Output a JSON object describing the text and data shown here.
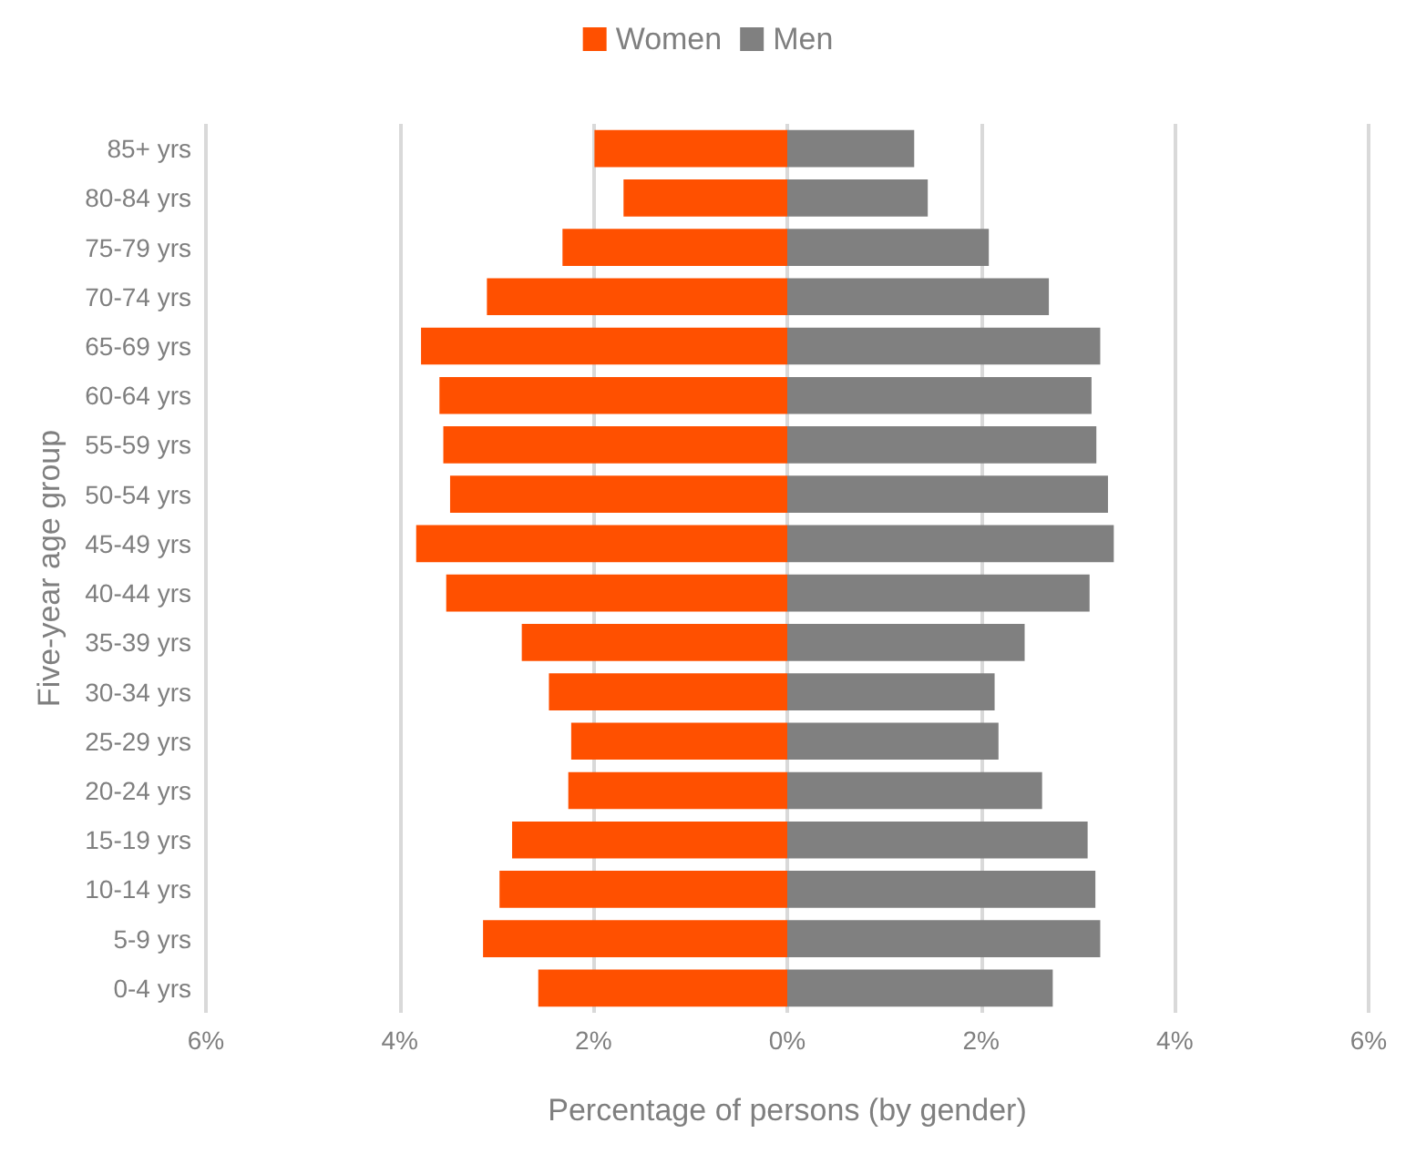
{
  "chart_data": {
    "type": "bar",
    "orientation": "horizontal",
    "stacked": true,
    "xlabel": "Percentage of persons (by gender)",
    "ylabel": "Five-year age group",
    "categories": [
      "85+ yrs",
      "80-84 yrs",
      "75-79 yrs",
      "70-74 yrs",
      "65-69 yrs",
      "60-64 yrs",
      "55-59 yrs",
      "50-54 yrs",
      "45-49 yrs",
      "40-44 yrs",
      "35-39 yrs",
      "30-34 yrs",
      "25-29 yrs",
      "20-24 yrs",
      "15-19 yrs",
      "10-14 yrs",
      "5-9 yrs",
      "0-4 yrs"
    ],
    "series": [
      {
        "name": "Women",
        "color": "#ff5000",
        "values": [
          -1.99,
          -1.69,
          -2.32,
          -3.1,
          -3.78,
          -3.59,
          -3.55,
          -3.48,
          -3.83,
          -3.52,
          -2.74,
          -2.46,
          -2.23,
          -2.26,
          -2.84,
          -2.97,
          -3.14,
          -2.57
        ]
      },
      {
        "name": "Men",
        "color": "#808080",
        "values": [
          1.31,
          1.45,
          2.08,
          2.7,
          3.23,
          3.14,
          3.19,
          3.31,
          3.37,
          3.12,
          2.45,
          2.14,
          2.18,
          2.63,
          3.1,
          3.18,
          3.23,
          2.74
        ]
      }
    ],
    "xlim": [
      -6,
      6
    ],
    "xticks": [
      {
        "value": -6,
        "label": "6%"
      },
      {
        "value": -4,
        "label": "4%"
      },
      {
        "value": -2,
        "label": "2%"
      },
      {
        "value": 0,
        "label": "0%"
      },
      {
        "value": 2,
        "label": "2%"
      },
      {
        "value": 4,
        "label": "4%"
      },
      {
        "value": 6,
        "label": "6%"
      }
    ],
    "grid": "x",
    "legend": "top"
  }
}
